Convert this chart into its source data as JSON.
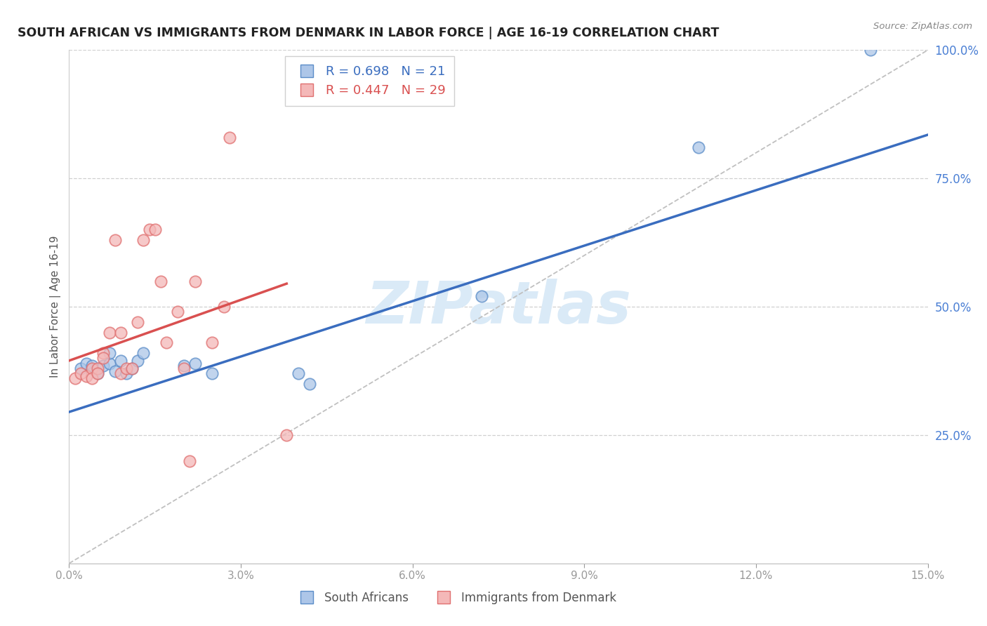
{
  "title": "SOUTH AFRICAN VS IMMIGRANTS FROM DENMARK IN LABOR FORCE | AGE 16-19 CORRELATION CHART",
  "source": "Source: ZipAtlas.com",
  "ylabel": "In Labor Force | Age 16-19",
  "xmin": 0.0,
  "xmax": 0.15,
  "ymin": 0.0,
  "ymax": 1.0,
  "blue_label": "South Africans",
  "pink_label": "Immigrants from Denmark",
  "blue_R": "0.698",
  "blue_N": "21",
  "pink_R": "0.447",
  "pink_N": "29",
  "blue_fill_color": "#adc6e8",
  "pink_fill_color": "#f4b8b8",
  "blue_edge_color": "#5b8dc8",
  "pink_edge_color": "#e07070",
  "blue_line_color": "#3a6dbf",
  "pink_line_color": "#d95050",
  "ref_line_color": "#c0c0c0",
  "grid_color": "#d0d0d0",
  "right_axis_color": "#4a7fd4",
  "title_color": "#222222",
  "source_color": "#888888",
  "watermark_color": "#daeaf7",
  "legend_text_blue": "#3a6dbf",
  "legend_text_pink": "#d95050",
  "blue_scatter_x": [
    0.002,
    0.003,
    0.004,
    0.005,
    0.006,
    0.007,
    0.007,
    0.008,
    0.009,
    0.01,
    0.011,
    0.012,
    0.013,
    0.02,
    0.022,
    0.025,
    0.04,
    0.042,
    0.072,
    0.11,
    0.14
  ],
  "blue_scatter_y": [
    0.38,
    0.39,
    0.385,
    0.37,
    0.385,
    0.39,
    0.41,
    0.375,
    0.395,
    0.37,
    0.38,
    0.395,
    0.41,
    0.385,
    0.39,
    0.37,
    0.37,
    0.35,
    0.52,
    0.81,
    1.0
  ],
  "pink_scatter_x": [
    0.001,
    0.002,
    0.003,
    0.004,
    0.004,
    0.005,
    0.005,
    0.006,
    0.006,
    0.007,
    0.008,
    0.009,
    0.009,
    0.01,
    0.011,
    0.012,
    0.013,
    0.014,
    0.015,
    0.016,
    0.017,
    0.019,
    0.02,
    0.021,
    0.022,
    0.025,
    0.027,
    0.028,
    0.038
  ],
  "pink_scatter_y": [
    0.36,
    0.37,
    0.365,
    0.38,
    0.36,
    0.38,
    0.37,
    0.41,
    0.4,
    0.45,
    0.63,
    0.45,
    0.37,
    0.38,
    0.38,
    0.47,
    0.63,
    0.65,
    0.65,
    0.55,
    0.43,
    0.49,
    0.38,
    0.2,
    0.55,
    0.43,
    0.5,
    0.83,
    0.25
  ],
  "blue_line_x": [
    0.0,
    0.15
  ],
  "blue_line_y": [
    0.295,
    0.835
  ],
  "pink_line_x": [
    0.0,
    0.038
  ],
  "pink_line_y": [
    0.395,
    0.545
  ],
  "ref_line_x": [
    0.0,
    0.15
  ],
  "ref_line_y": [
    0.0,
    1.0
  ],
  "yticks_right": [
    0.25,
    0.5,
    0.75,
    1.0
  ],
  "ytick_labels_right": [
    "25.0%",
    "50.0%",
    "75.0%",
    "100.0%"
  ],
  "xticks": [
    0.0,
    0.03,
    0.06,
    0.09,
    0.12,
    0.15
  ],
  "xtick_labels": [
    "0.0%",
    "3.0%",
    "6.0%",
    "9.0%",
    "12.0%",
    "15.0%"
  ]
}
